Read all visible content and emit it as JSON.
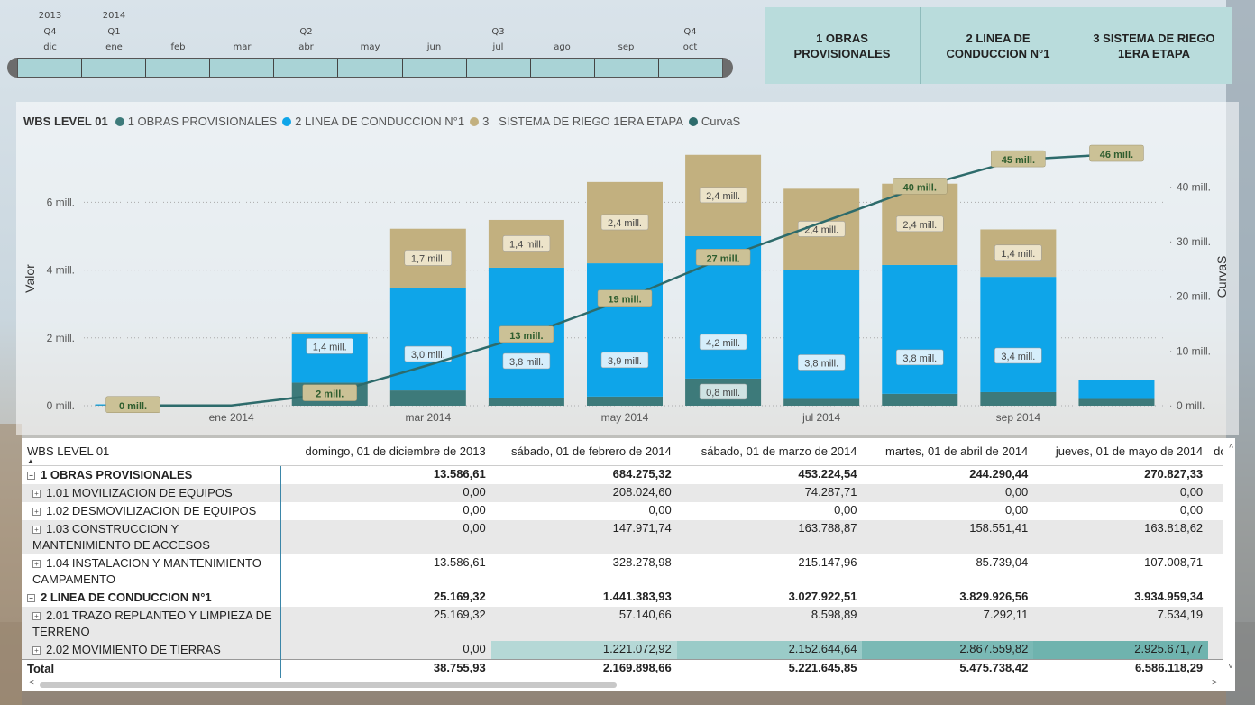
{
  "timeline": {
    "years": [
      {
        "label": "2013",
        "col": 0
      },
      {
        "label": "2014",
        "col": 1
      }
    ],
    "quarters": [
      {
        "label": "Q4",
        "col": 0
      },
      {
        "label": "Q1",
        "col": 1
      },
      {
        "label": "Q2",
        "col": 4
      },
      {
        "label": "Q3",
        "col": 7
      },
      {
        "label": "Q4",
        "col": 10
      }
    ],
    "months": [
      "dic",
      "ene",
      "feb",
      "mar",
      "abr",
      "may",
      "jun",
      "jul",
      "ago",
      "sep",
      "oct"
    ]
  },
  "slicer": {
    "buttons": [
      "1 OBRAS PROVISIONALES",
      "2 LINEA DE CONDUCCION N°1",
      "3 SISTEMA DE RIEGO 1ERA ETAPA"
    ]
  },
  "legend": {
    "title": "WBS LEVEL 01",
    "items": [
      {
        "label": "1 OBRAS PROVISIONALES",
        "color": "#3d7a7a"
      },
      {
        "label": "2 LINEA DE CONDUCCION N°1",
        "color": "#0ea5e9"
      },
      {
        "label": "3   SISTEMA DE RIEGO 1ERA ETAPA",
        "color": "#c2b07f"
      },
      {
        "label": "CurvaS",
        "color": "#2d6b6b"
      }
    ]
  },
  "chart_data": {
    "type": "bar",
    "stacked": true,
    "categories": [
      "dic 2013",
      "ene 2014",
      "feb 2014",
      "mar 2014",
      "abr 2014",
      "may 2014",
      "jun 2014",
      "jul 2014",
      "ago 2014",
      "sep 2014",
      "oct 2014"
    ],
    "x_tick_labels": [
      "ene 2014",
      "mar 2014",
      "may 2014",
      "jul 2014",
      "sep 2014"
    ],
    "series": [
      {
        "name": "1 OBRAS PROVISIONALES",
        "color": "#3d7a7a",
        "values": [
          0.01,
          0,
          0.68,
          0.45,
          0.24,
          0.27,
          0.8,
          0.2,
          0.35,
          0.4,
          0.2
        ],
        "labels": [
          "",
          "",
          "",
          "",
          "",
          "",
          "0,8 mill.",
          "",
          "",
          "",
          ""
        ]
      },
      {
        "name": "2 LINEA DE CONDUCCION N°1",
        "color": "#0ea5e9",
        "values": [
          0.03,
          0,
          1.44,
          3.03,
          3.83,
          3.93,
          4.2,
          3.8,
          3.8,
          3.4,
          0.55
        ],
        "labels": [
          "",
          "",
          "1,4 mill.",
          "3,0 mill.",
          "3,8 mill.",
          "3,9 mill.",
          "4,2 mill.",
          "3,8 mill.",
          "3,8 mill.",
          "3,4 mill.",
          ""
        ]
      },
      {
        "name": "3   SISTEMA DE RIEGO 1ERA ETAPA",
        "color": "#c2b07f",
        "values": [
          0,
          0,
          0.05,
          1.74,
          1.41,
          2.4,
          2.4,
          2.4,
          2.4,
          1.4,
          0
        ],
        "labels": [
          "",
          "",
          "",
          "1,7 mill.",
          "1,4 mill.",
          "2,4 mill.",
          "2,4 mill.",
          "2,4 mill.",
          "2,4 mill.",
          "1,4 mill.",
          ""
        ]
      }
    ],
    "line": {
      "name": "CurvaS",
      "color": "#2d6b6b",
      "values": [
        0.04,
        0.04,
        2.2,
        7.4,
        12.9,
        19.5,
        27.0,
        33.5,
        40.0,
        45.0,
        46.0
      ],
      "labels": [
        "0 mill.",
        "",
        "2 mill.",
        "",
        "13 mill.",
        "19 mill.",
        "27 mill.",
        "",
        "40 mill.",
        "45 mill.",
        "46 mill."
      ]
    },
    "ylabel": "Valor",
    "y2label": "CurvaS",
    "ylim": [
      0,
      7.5
    ],
    "y2lim": [
      0,
      46.5
    ],
    "yticks": [
      "0 mill.",
      "2 mill.",
      "4 mill.",
      "6 mill."
    ],
    "y2ticks": [
      "0 mill.",
      "10 mill.",
      "20 mill.",
      "30 mill.",
      "40 mill."
    ]
  },
  "table": {
    "header": [
      "WBS LEVEL 01",
      "domingo, 01 de diciembre de 2013",
      "sábado, 01 de febrero de 2014",
      "sábado, 01 de marzo de 2014",
      "martes, 01 de abril de 2014",
      "jueves, 01 de mayo de 2014",
      "do"
    ],
    "rows": [
      {
        "level": 1,
        "toggle": "⊟",
        "label": "1 OBRAS PROVISIONALES",
        "values": [
          "13.586,61",
          "684.275,32",
          "453.224,54",
          "244.290,44",
          "270.827,33"
        ]
      },
      {
        "level": 2,
        "toggle": "⊞",
        "label": "1.01 MOVILIZACION DE EQUIPOS",
        "values": [
          "0,00",
          "208.024,60",
          "74.287,71",
          "0,00",
          "0,00"
        ]
      },
      {
        "level": 2,
        "toggle": "⊞",
        "label": "1.02 DESMOVILIZACION DE EQUIPOS",
        "values": [
          "0,00",
          "0,00",
          "0,00",
          "0,00",
          "0,00"
        ]
      },
      {
        "level": 2,
        "toggle": "⊞",
        "label": "1.03 CONSTRUCCION Y MANTENIMIENTO DE ACCESOS",
        "values": [
          "0,00",
          "147.971,74",
          "163.788,87",
          "158.551,41",
          "163.818,62"
        ]
      },
      {
        "level": 2,
        "toggle": "⊞",
        "label": "1.04 INSTALACION Y MANTENIMIENTO CAMPAMENTO",
        "values": [
          "13.586,61",
          "328.278,98",
          "215.147,96",
          "85.739,04",
          "107.008,71"
        ]
      },
      {
        "level": 1,
        "toggle": "⊟",
        "label": "2 LINEA DE CONDUCCION N°1",
        "values": [
          "25.169,32",
          "1.441.383,93",
          "3.027.922,51",
          "3.829.926,56",
          "3.934.959,34"
        ]
      },
      {
        "level": 2,
        "toggle": "⊞",
        "label": "2.01 TRAZO REPLANTEO Y LIMPIEZA DE TERRENO",
        "values": [
          "25.169,32",
          "57.140,66",
          "8.598,89",
          "7.292,11",
          "7.534,19"
        ]
      },
      {
        "level": 2,
        "toggle": "⊞",
        "label": "2.02 MOVIMIENTO DE TIERRAS",
        "values": [
          "0,00",
          "1.221.072,92",
          "2.152.644,64",
          "2.867.559,82",
          "2.925.671,77"
        ],
        "heat": [
          "",
          "#b5d8d6",
          "#9acbc8",
          "#7ab9b5",
          "#6fb3ae"
        ]
      }
    ],
    "total": {
      "label": "Total",
      "values": [
        "38.755,93",
        "2.169.898,66",
        "5.221.645,85",
        "5.475.738,42",
        "6.586.118,29"
      ]
    }
  }
}
